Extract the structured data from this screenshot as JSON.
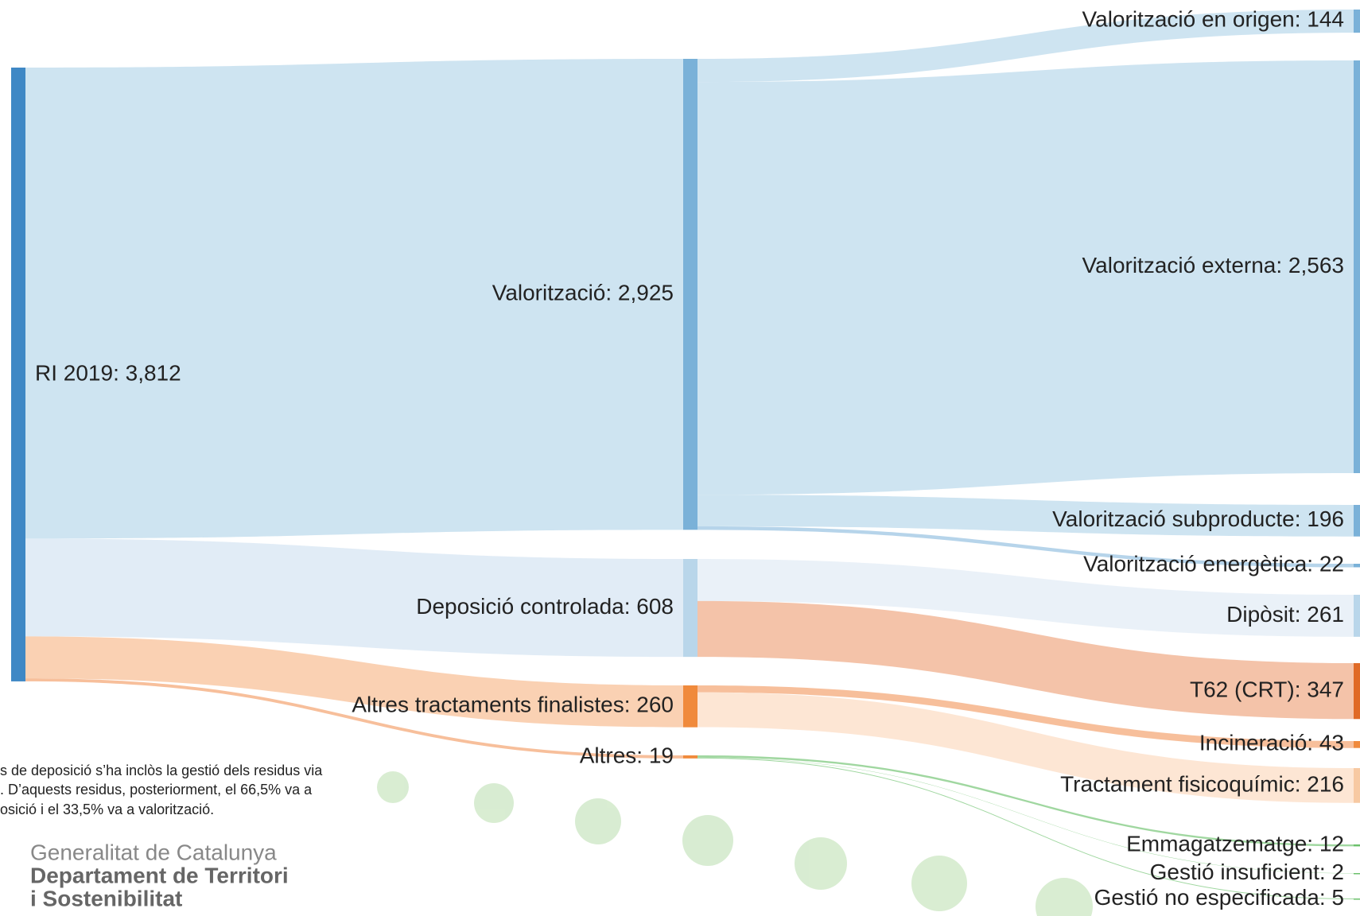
{
  "chart_data": {
    "type": "sankey",
    "nodes": [
      {
        "label": "RI 2019: 3,812",
        "value": 3812,
        "color": "#3f88c5"
      },
      {
        "label": "Valorització: 2,925",
        "value": 2925,
        "color": "#7ab1d8"
      },
      {
        "label": "Deposició controlada: 608",
        "value": 608,
        "color": "#b9d6ea"
      },
      {
        "label": "Altres tractaments finalistes: 260",
        "value": 260,
        "color": "#f08a3c"
      },
      {
        "label": "Altres: 19",
        "value": 19,
        "color": "#f08a3c"
      },
      {
        "label": "Valorització en origen: 144",
        "value": 144,
        "color": "#7ab1d8"
      },
      {
        "label": "Valorització externa: 2,563",
        "value": 2563,
        "color": "#7ab1d8"
      },
      {
        "label": "Valorització subproducte: 196",
        "value": 196,
        "color": "#7ab1d8"
      },
      {
        "label": "Valorització energètica: 22",
        "value": 22,
        "color": "#7ab1d8"
      },
      {
        "label": "Dipòsit: 261",
        "value": 261,
        "color": "#b9d6ea"
      },
      {
        "label": "T62 (CRT): 347",
        "value": 347,
        "color": "#e06a26"
      },
      {
        "label": "Incineració: 43",
        "value": 43,
        "color": "#f08a3c"
      },
      {
        "label": "Tractament fisicoquímic: 216",
        "value": 216,
        "color": "#f7c9a2"
      },
      {
        "label": "Emmagatzematge: 12",
        "value": 12,
        "color": "#6bc06b"
      },
      {
        "label": "Gestió insuficient: 2",
        "value": 2,
        "color": "#6bc06b"
      },
      {
        "label": "Gestió no especificada: 5",
        "value": 5,
        "color": "#6bc06b"
      }
    ],
    "links": [
      {
        "source": 0,
        "target": 1,
        "value": 2925,
        "color": "#c5dfee"
      },
      {
        "source": 0,
        "target": 2,
        "value": 608,
        "color": "#dce9f5"
      },
      {
        "source": 0,
        "target": 3,
        "value": 260,
        "color": "#f9c9a6"
      },
      {
        "source": 0,
        "target": 4,
        "value": 19,
        "color": "#f6b48a"
      },
      {
        "source": 1,
        "target": 5,
        "value": 144,
        "color": "#c5dfee"
      },
      {
        "source": 1,
        "target": 6,
        "value": 2563,
        "color": "#c5dfee"
      },
      {
        "source": 1,
        "target": 7,
        "value": 196,
        "color": "#c5dfee"
      },
      {
        "source": 1,
        "target": 8,
        "value": 22,
        "color": "#a9cde6"
      },
      {
        "source": 2,
        "target": 9,
        "value": 261,
        "color": "#e6eef7"
      },
      {
        "source": 2,
        "target": 10,
        "value": 347,
        "color": "#f2b89a"
      },
      {
        "source": 3,
        "target": 11,
        "value": 43,
        "color": "#f6b48a"
      },
      {
        "source": 3,
        "target": 12,
        "value": 216,
        "color": "#fde2cc"
      },
      {
        "source": 4,
        "target": 13,
        "value": 12,
        "color": "#8fd08f"
      },
      {
        "source": 4,
        "target": 14,
        "value": 2,
        "color": "#8fd08f"
      },
      {
        "source": 4,
        "target": 15,
        "value": 5,
        "color": "#8fd08f"
      }
    ],
    "annotations": [
      "s de deposició s’ha inclòs la gestió dels residus via",
      ". D’aquests residus, posteriorment, el 66,5% va a",
      "osició i el 33,5% va a valorització."
    ],
    "logo": [
      "Generalitat de Catalunya",
      "Departament de Territori",
      "i Sostenibilitat"
    ]
  }
}
